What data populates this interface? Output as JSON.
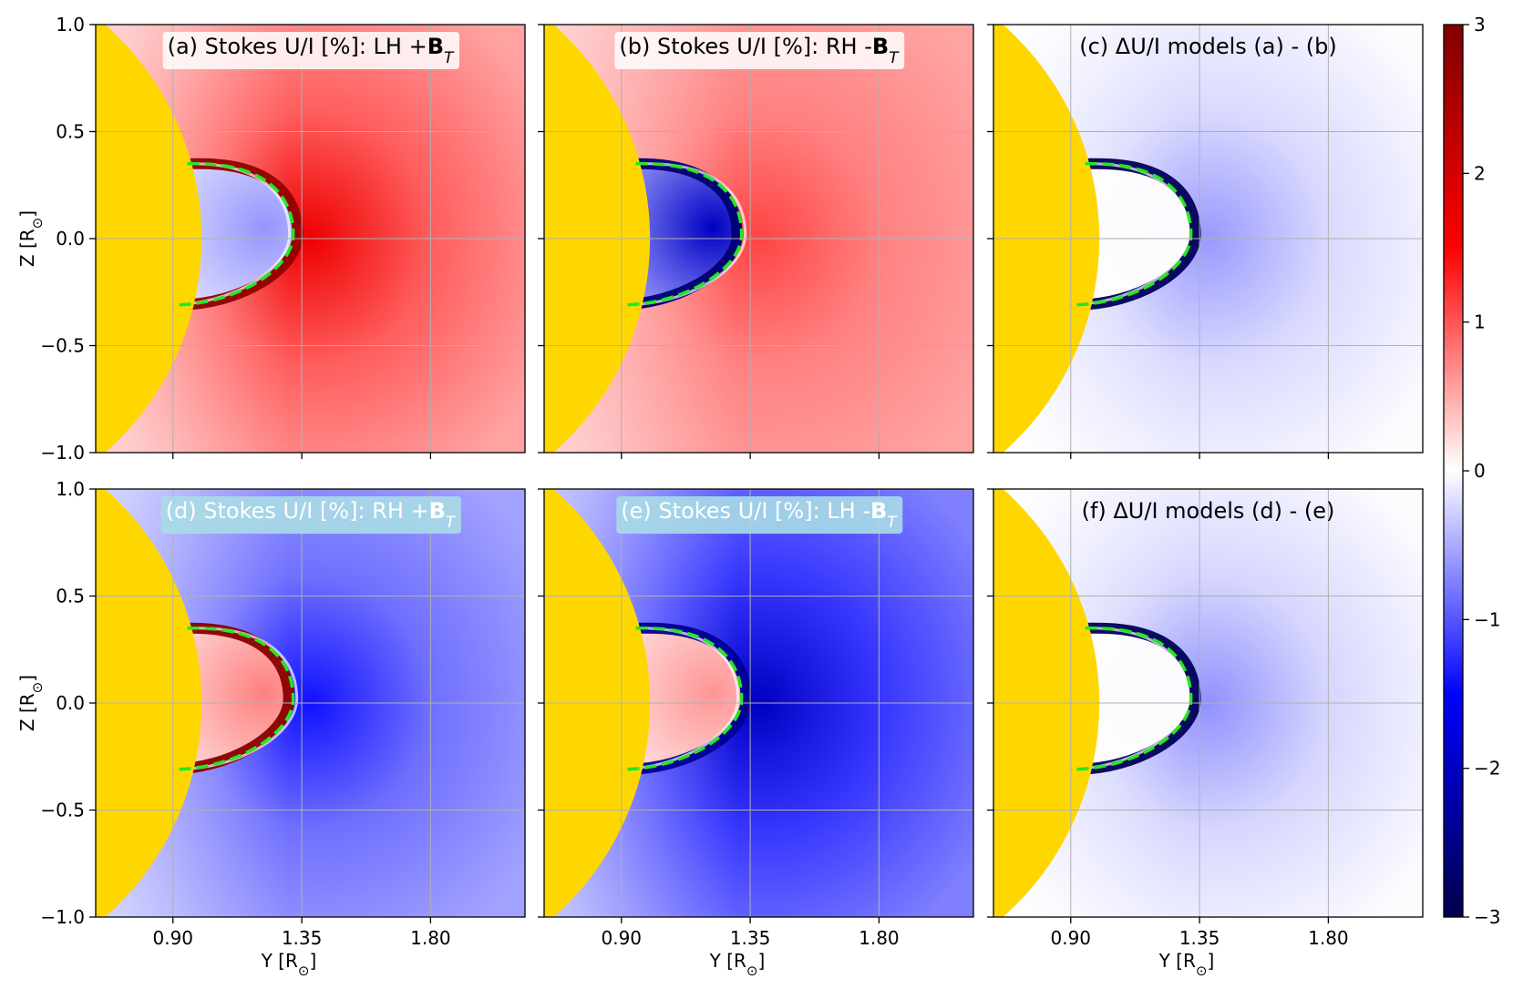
{
  "chart_data": {
    "type": "heatmap",
    "panels": [
      {
        "id": "a",
        "title": "(a) Stokes U/I [%]: LH +",
        "title_bold": "B",
        "title_sub": "T",
        "label_style": "light",
        "pattern": {
          "outer": 0.55,
          "outer_peak": 1.7,
          "inner": -0.5,
          "rim": 2.8,
          "rim_side": "outer"
        }
      },
      {
        "id": "b",
        "title": "(b) Stokes U/I [%]: RH -",
        "title_bold": "B",
        "title_sub": "T",
        "label_style": "light",
        "pattern": {
          "outer": 0.55,
          "outer_peak": 1.1,
          "inner": -1.6,
          "rim": -2.7,
          "rim_side": "inner"
        }
      },
      {
        "id": "c",
        "title": "(c) ΔU/I models (a) - (b)",
        "title_bold": "",
        "title_sub": "",
        "label_style": "none",
        "pattern": {
          "outer": -0.02,
          "outer_peak": -0.6,
          "inner": -0.02,
          "rim": -2.9,
          "rim_side": "outer"
        }
      },
      {
        "id": "d",
        "title": "(d) Stokes U/I [%]: RH +",
        "title_bold": "B",
        "title_sub": "T",
        "label_style": "dark",
        "pattern": {
          "outer": -0.55,
          "outer_peak": -1.4,
          "inner": 0.6,
          "rim": 2.9,
          "rim_side": "inner"
        }
      },
      {
        "id": "e",
        "title": "(e) Stokes U/I [%]: LH -",
        "title_bold": "B",
        "title_sub": "T",
        "label_style": "dark",
        "pattern": {
          "outer": -0.75,
          "outer_peak": -2.0,
          "inner": 0.5,
          "rim": -2.4,
          "rim_side": "outer"
        }
      },
      {
        "id": "f",
        "title": "(f) ΔU/I models (d) - (e)",
        "title_bold": "",
        "title_sub": "",
        "label_style": "none",
        "pattern": {
          "outer": -0.02,
          "outer_peak": -0.65,
          "inner": -0.02,
          "rim": -2.9,
          "rim_side": "outer"
        }
      }
    ],
    "xlabel": "Y [R",
    "xlabel_sun": "⊙",
    "xlabel_close": "]",
    "ylabel": "Z [R",
    "ylabel_sun": "⊙",
    "ylabel_close": "]",
    "xlim": [
      0.63,
      2.13
    ],
    "ylim": [
      -1.0,
      1.0
    ],
    "xticks": [
      0.9,
      1.35,
      1.8
    ],
    "xtick_labels": [
      "0.90",
      "1.35",
      "1.80"
    ],
    "yticks": [
      1.0,
      0.5,
      0.0,
      -0.5,
      -1.0
    ],
    "ytick_labels": [
      "1.0",
      "0.5",
      "0.0",
      "−0.5",
      "−1.0"
    ],
    "grid": true,
    "colorbar": {
      "range": [
        -3,
        3
      ],
      "ticks": [
        3,
        2,
        1,
        0,
        -1,
        -2,
        -3
      ],
      "tick_labels": [
        "3",
        "2",
        "1",
        "0",
        "−1",
        "−2",
        "−3"
      ],
      "colormap": "seismic"
    },
    "sun": {
      "center": [
        0.0,
        0.0
      ],
      "radius": 1.0,
      "color": "#FFD700"
    },
    "loop": {
      "x_left": 0.98,
      "x_right": 1.32,
      "y_top": 0.35,
      "y_bottom": -0.31,
      "y_center": 0.02,
      "color": "#22E822",
      "style": "dashed"
    }
  }
}
